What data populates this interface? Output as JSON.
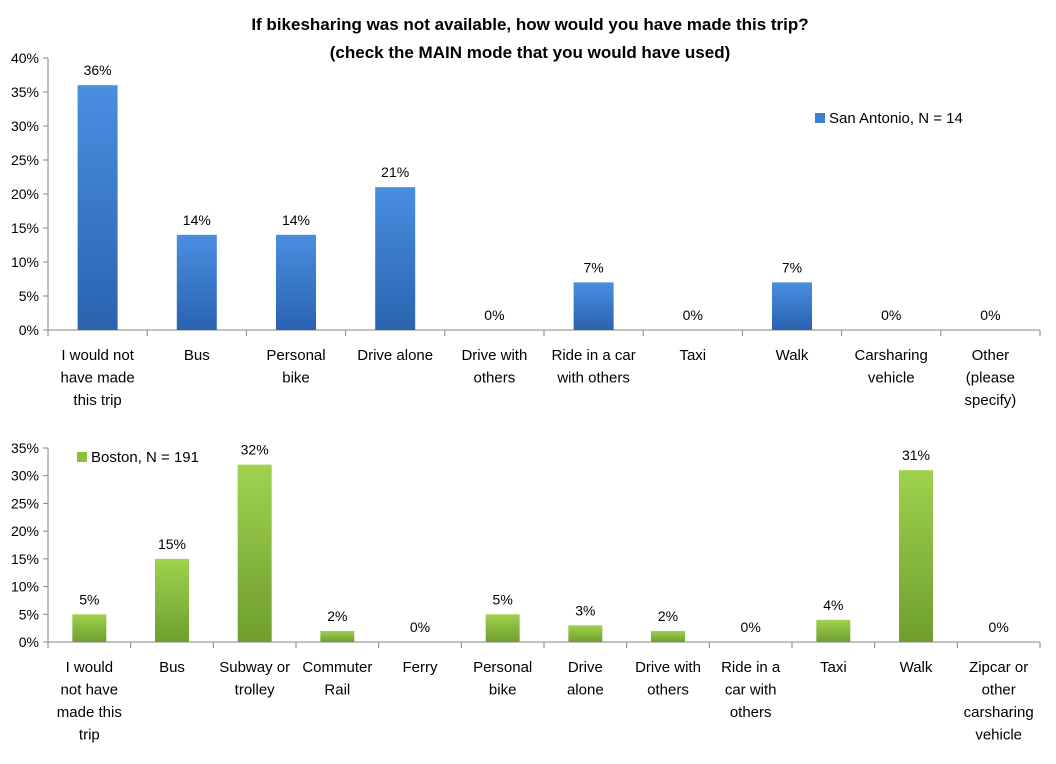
{
  "title_line1": "If bikesharing was not available, how would you have made this trip?",
  "title_line2": "(check the MAIN mode that you would have used)",
  "chart_data": [
    {
      "type": "bar",
      "series": [
        {
          "name": "San Antonio, N = 14",
          "values": [
            36,
            14,
            14,
            21,
            0,
            7,
            0,
            7,
            0,
            0
          ],
          "data_labels": [
            "36%",
            "14%",
            "14%",
            "21%",
            "0%",
            "7%",
            "0%",
            "7%",
            "0%",
            "0%"
          ],
          "color": "#3d7fd1"
        }
      ],
      "categories": [
        [
          "I would not",
          "have made",
          "this trip"
        ],
        [
          "Bus"
        ],
        [
          "Personal",
          "bike"
        ],
        [
          "Drive alone"
        ],
        [
          "Drive with",
          "others"
        ],
        [
          "Ride in a car",
          "with others"
        ],
        [
          "Taxi"
        ],
        [
          "Walk"
        ],
        [
          "Carsharing",
          "vehicle"
        ],
        [
          "Other",
          "(please",
          "specify)"
        ]
      ],
      "ylim": [
        0,
        40
      ],
      "yticks": [
        "0%",
        "5%",
        "10%",
        "15%",
        "20%",
        "25%",
        "30%",
        "35%",
        "40%"
      ],
      "grid": false,
      "legend_position": "top-right"
    },
    {
      "type": "bar",
      "series": [
        {
          "name": "Boston, N = 191",
          "values": [
            5,
            15,
            32,
            2,
            0,
            5,
            3,
            2,
            0,
            4,
            31,
            0
          ],
          "data_labels": [
            "5%",
            "15%",
            "32%",
            "2%",
            "0%",
            "5%",
            "3%",
            "2%",
            "0%",
            "4%",
            "31%",
            "0%"
          ],
          "color": "#8dbf3f"
        }
      ],
      "categories": [
        [
          "I would",
          "not have",
          "made this",
          "trip"
        ],
        [
          "Bus"
        ],
        [
          "Subway or",
          "trolley"
        ],
        [
          "Commuter",
          "Rail"
        ],
        [
          "Ferry"
        ],
        [
          "Personal",
          "bike"
        ],
        [
          "Drive",
          "alone"
        ],
        [
          "Drive with",
          "others"
        ],
        [
          "Ride in a",
          "car with",
          "others"
        ],
        [
          "Taxi"
        ],
        [
          "Walk"
        ],
        [
          "Zipcar or",
          "other",
          "carsharing",
          "vehicle"
        ]
      ],
      "ylim": [
        0,
        35
      ],
      "yticks": [
        "0%",
        "5%",
        "10%",
        "15%",
        "20%",
        "25%",
        "30%",
        "35%"
      ],
      "grid": false,
      "legend_position": "top-left"
    }
  ]
}
